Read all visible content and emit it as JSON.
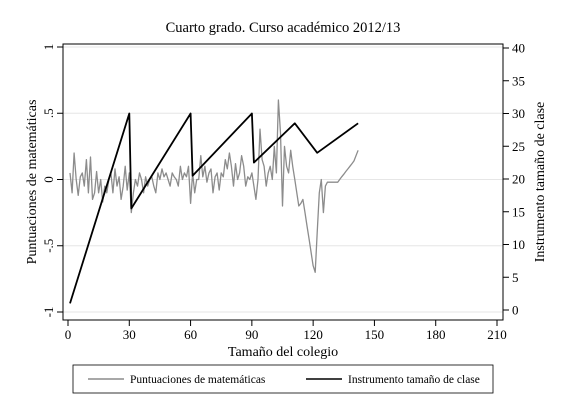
{
  "chart_data": {
    "type": "line",
    "title": "Cuarto grado. Curso académico 2012/13",
    "xlabel": "Tamaño del colegio",
    "ylabel_left": "Puntuaciones de matemáticas",
    "ylabel_right": "Instrumento tamaño de clase",
    "xlim": [
      0,
      210
    ],
    "ylim_left": [
      -1,
      1
    ],
    "ylim_right": [
      0,
      40
    ],
    "x_ticks": [
      0,
      30,
      60,
      90,
      120,
      150,
      180,
      210
    ],
    "x_tick_labels": [
      "0",
      "30",
      "60",
      "90",
      "120",
      "150",
      "180",
      "210"
    ],
    "y_left_ticks": [
      -1,
      -0.5,
      0,
      0.5,
      1
    ],
    "y_left_tick_labels": [
      "-1",
      "-.5",
      "0",
      ".5",
      "1"
    ],
    "y_right_ticks": [
      0,
      5,
      10,
      15,
      20,
      25,
      30,
      35,
      40
    ],
    "y_right_tick_labels": [
      "0",
      "5",
      "10",
      "15",
      "20",
      "25",
      "30",
      "35",
      "40"
    ],
    "grid": "horizontal",
    "legend_position": "bottom",
    "series": [
      {
        "name": "Puntuaciones de matemáticas",
        "axis": "left",
        "color": "#8c8c8c",
        "x": [
          1,
          2,
          3,
          4,
          5,
          6,
          7,
          8,
          9,
          10,
          11,
          12,
          13,
          14,
          15,
          16,
          17,
          18,
          19,
          20,
          21,
          22,
          23,
          24,
          25,
          26,
          27,
          28,
          29,
          30,
          31,
          32,
          33,
          34,
          35,
          36,
          37,
          38,
          39,
          40,
          41,
          42,
          43,
          44,
          45,
          46,
          47,
          48,
          49,
          50,
          51,
          52,
          53,
          54,
          55,
          56,
          57,
          58,
          59,
          60,
          61,
          62,
          63,
          64,
          65,
          66,
          67,
          68,
          69,
          70,
          71,
          72,
          73,
          74,
          75,
          76,
          77,
          78,
          79,
          80,
          81,
          82,
          83,
          84,
          85,
          86,
          87,
          88,
          89,
          90,
          91,
          92,
          93,
          94,
          95,
          96,
          97,
          98,
          99,
          100,
          101,
          102,
          103,
          104,
          105,
          106,
          107,
          108,
          109,
          110,
          111,
          112,
          113,
          114,
          115,
          116,
          117,
          118,
          119,
          120,
          121,
          122,
          123,
          124,
          125,
          126,
          127,
          128,
          129,
          130,
          131,
          132,
          133,
          134,
          135,
          136,
          137,
          138,
          139,
          140,
          141,
          142
        ],
        "y": [
          0.05,
          -0.1,
          0.2,
          0.0,
          -0.12,
          0.02,
          0.05,
          -0.05,
          0.15,
          -0.1,
          0.17,
          -0.15,
          -0.1,
          0.06,
          -0.1,
          0.0,
          -0.17,
          -0.05,
          -0.1,
          0.0,
          0.05,
          -0.1,
          0.08,
          -0.05,
          0.02,
          -0.15,
          -0.05,
          0.1,
          -0.08,
          0.05,
          -0.25,
          -0.1,
          0.0,
          -0.05,
          0.05,
          0.0,
          -0.1,
          0.02,
          -0.05,
          0.0,
          0.02,
          -0.05,
          -0.1,
          0.05,
          0.0,
          0.08,
          0.02,
          0.05,
          0.0,
          -0.05,
          0.05,
          0.02,
          0.0,
          -0.05,
          0.1,
          0.0,
          0.05,
          0.02,
          0.1,
          -0.18,
          0.05,
          -0.1,
          0.0,
          0.0,
          0.18,
          0.02,
          0.1,
          -0.02,
          0.05,
          0.08,
          -0.1,
          0.02,
          0.05,
          -0.08,
          0.05,
          0.02,
          0.15,
          0.08,
          0.2,
          0.1,
          -0.05,
          0.12,
          0.0,
          0.05,
          0.18,
          0.1,
          -0.05,
          0.02,
          0.0,
          0.05,
          -0.05,
          -0.15,
          0.0,
          0.38,
          0.15,
          0.1,
          -0.05,
          0.05,
          0.1,
          0.0,
          0.25,
          0.05,
          0.6,
          0.35,
          -0.2,
          0.25,
          0.1,
          0.05,
          0.22,
          0.1,
          0.0,
          -0.1,
          -0.2,
          -0.18,
          -0.15,
          -0.25,
          -0.35,
          -0.45,
          -0.55,
          -0.65,
          -0.7,
          -0.4,
          -0.1,
          0.0,
          -0.25,
          -0.05,
          -0.02,
          -0.02,
          -0.02,
          -0.02,
          -0.02,
          -0.02,
          0.0,
          0.02,
          0.04,
          0.06,
          0.08,
          0.1,
          0.12,
          0.14,
          0.18,
          0.22
        ]
      },
      {
        "name": "Instrumento tamaño de clase",
        "axis": "right",
        "color": "#000000",
        "x": [
          1,
          30,
          31,
          60,
          61,
          90,
          91,
          111,
          122,
          142
        ],
        "y": [
          1,
          30,
          15.5,
          30,
          20.5,
          30,
          22.5,
          28.5,
          24,
          28.5
        ]
      }
    ]
  }
}
